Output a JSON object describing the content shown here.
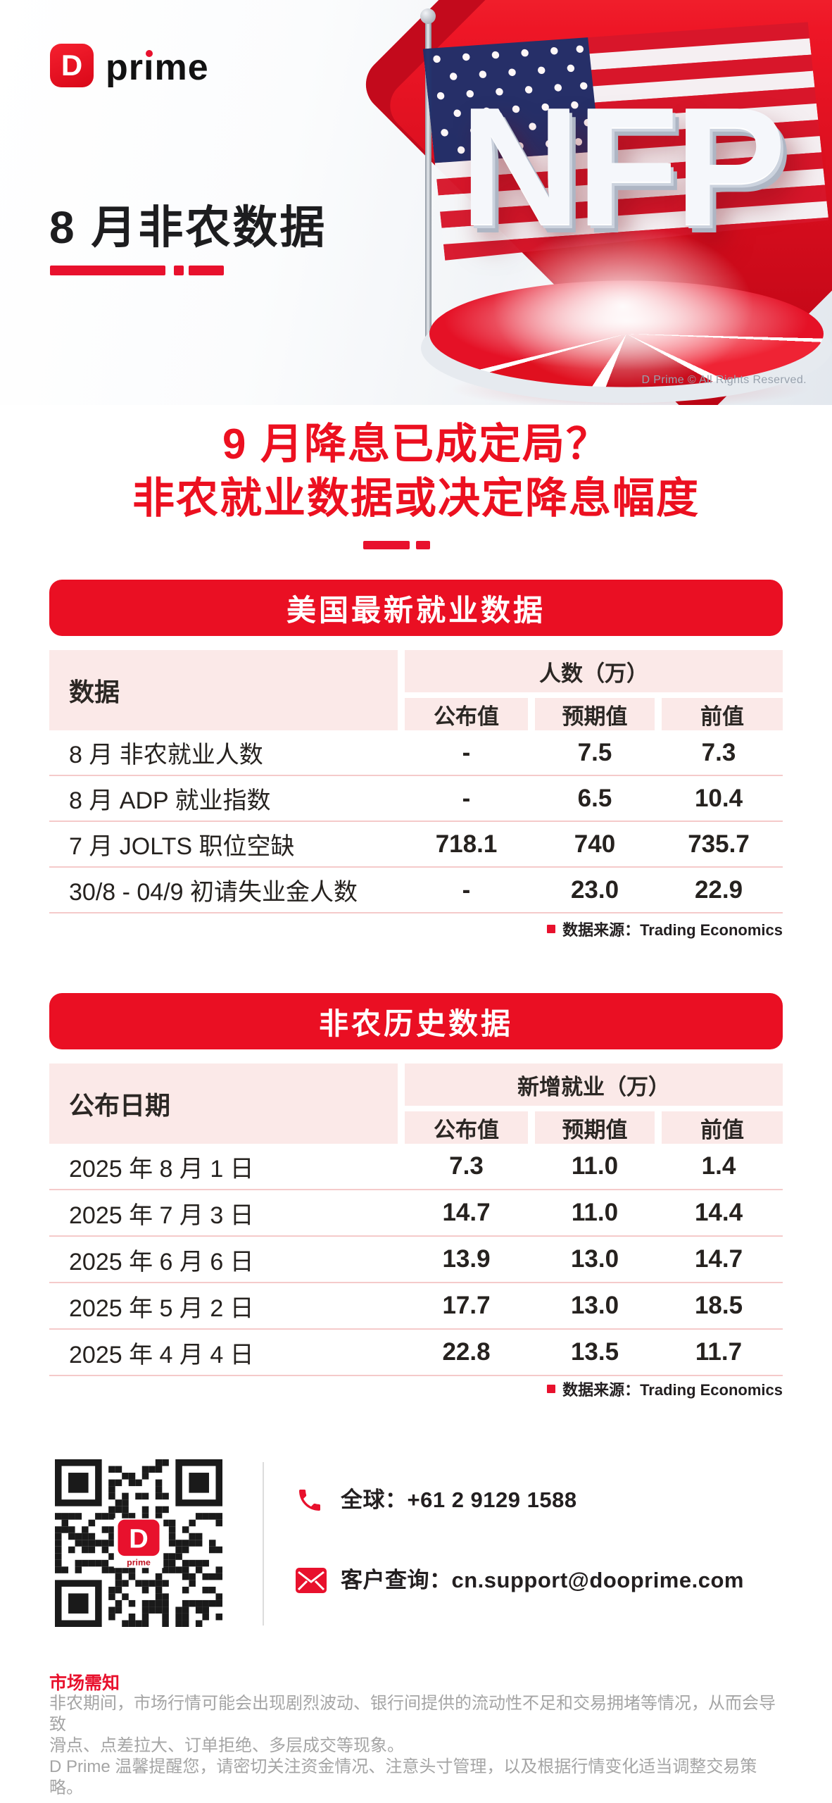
{
  "brand": {
    "logo_d": "D",
    "logo_word_parts": {
      "a": "pr",
      "b": "ı",
      "c": "me"
    }
  },
  "hero": {
    "title": "8 月非农数据",
    "nfp_text": "NFP",
    "copyright": "D Prime © All Rights Reserved."
  },
  "headline": {
    "line1": "9 月降息已成定局？",
    "line2": "非农就业数据或决定降息幅度"
  },
  "section1": {
    "banner": "美国最新就业数据",
    "header": {
      "row_label": "数据",
      "group": "人数（万）",
      "cols": [
        "公布值",
        "预期值",
        "前值"
      ]
    },
    "rows": [
      [
        "8 月 非农就业人数",
        "-",
        "7.5",
        "7.3"
      ],
      [
        "8 月 ADP 就业指数",
        "-",
        "6.5",
        "10.4"
      ],
      [
        "7 月 JOLTS 职位空缺",
        "718.1",
        "740",
        "735.7"
      ],
      [
        "30/8 - 04/9 初请失业金人数",
        "-",
        "23.0",
        "22.9"
      ]
    ],
    "source": "数据来源：Trading Economics"
  },
  "section2": {
    "banner": "非农历史数据",
    "header": {
      "row_label": "公布日期",
      "group": "新增就业（万）",
      "cols": [
        "公布值",
        "预期值",
        "前值"
      ]
    },
    "rows": [
      [
        "2025 年 8 月 1 日",
        "7.3",
        "11.0",
        "1.4"
      ],
      [
        "2025 年 7 月 3 日",
        "14.7",
        "11.0",
        "14.4"
      ],
      [
        "2025 年 6 月 6 日",
        "13.9",
        "13.0",
        "14.7"
      ],
      [
        "2025 年 5 月 2 日",
        "17.7",
        "13.0",
        "18.5"
      ],
      [
        "2025 年 4 月 4 日",
        "22.8",
        "13.5",
        "11.7"
      ]
    ],
    "source": "数据来源：Trading Economics"
  },
  "contact": {
    "phone": "全球：+61 2 9129 1588",
    "email": "客户查询：cn.support@dooprime.com"
  },
  "footer": {
    "title": "市场需知",
    "line1": "非农期间，市场行情可能会出现剧烈波动、银行间提供的流动性不足和交易拥堵等情况，从而会导致",
    "line2": "滑点、点差拉大、订单拒绝、多层成交等现象。",
    "line3": "D Prime 温馨提醒您，请密切关注资金情况、注意头寸管理，以及根据行情变化适当调整交易策略。"
  },
  "colors": {
    "brand_red": "#ea0f23",
    "header_pink": "#fbe9e8",
    "row_separator": "#f5caca",
    "text_dark": "#231f20",
    "text_gray": "#a5a5a5"
  }
}
